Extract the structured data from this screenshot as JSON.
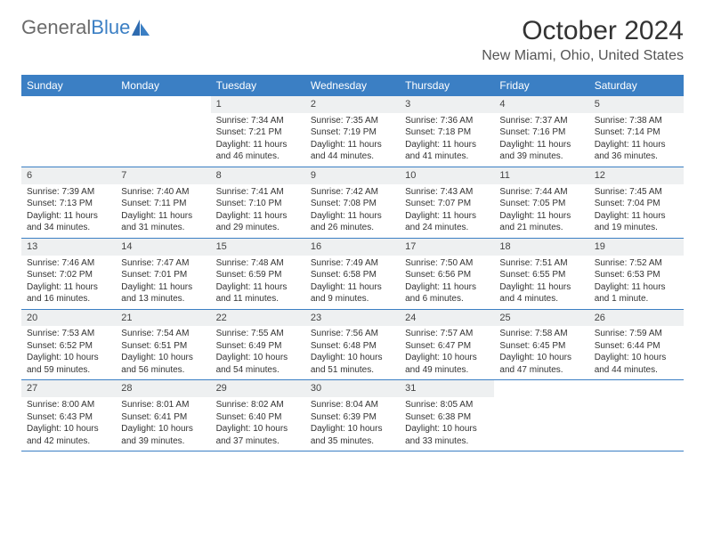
{
  "logo": {
    "text1": "General",
    "text2": "Blue"
  },
  "title": "October 2024",
  "location": "New Miami, Ohio, United States",
  "colors": {
    "accent": "#3b7fc4",
    "dayHeaderBg": "#eef0f1",
    "text": "#333333",
    "logoGray": "#6b6b6b"
  },
  "daysOfWeek": [
    "Sunday",
    "Monday",
    "Tuesday",
    "Wednesday",
    "Thursday",
    "Friday",
    "Saturday"
  ],
  "weeks": [
    [
      {
        "empty": true
      },
      {
        "empty": true
      },
      {
        "num": "1",
        "sunrise": "Sunrise: 7:34 AM",
        "sunset": "Sunset: 7:21 PM",
        "day1": "Daylight: 11 hours",
        "day2": "and 46 minutes."
      },
      {
        "num": "2",
        "sunrise": "Sunrise: 7:35 AM",
        "sunset": "Sunset: 7:19 PM",
        "day1": "Daylight: 11 hours",
        "day2": "and 44 minutes."
      },
      {
        "num": "3",
        "sunrise": "Sunrise: 7:36 AM",
        "sunset": "Sunset: 7:18 PM",
        "day1": "Daylight: 11 hours",
        "day2": "and 41 minutes."
      },
      {
        "num": "4",
        "sunrise": "Sunrise: 7:37 AM",
        "sunset": "Sunset: 7:16 PM",
        "day1": "Daylight: 11 hours",
        "day2": "and 39 minutes."
      },
      {
        "num": "5",
        "sunrise": "Sunrise: 7:38 AM",
        "sunset": "Sunset: 7:14 PM",
        "day1": "Daylight: 11 hours",
        "day2": "and 36 minutes."
      }
    ],
    [
      {
        "num": "6",
        "sunrise": "Sunrise: 7:39 AM",
        "sunset": "Sunset: 7:13 PM",
        "day1": "Daylight: 11 hours",
        "day2": "and 34 minutes."
      },
      {
        "num": "7",
        "sunrise": "Sunrise: 7:40 AM",
        "sunset": "Sunset: 7:11 PM",
        "day1": "Daylight: 11 hours",
        "day2": "and 31 minutes."
      },
      {
        "num": "8",
        "sunrise": "Sunrise: 7:41 AM",
        "sunset": "Sunset: 7:10 PM",
        "day1": "Daylight: 11 hours",
        "day2": "and 29 minutes."
      },
      {
        "num": "9",
        "sunrise": "Sunrise: 7:42 AM",
        "sunset": "Sunset: 7:08 PM",
        "day1": "Daylight: 11 hours",
        "day2": "and 26 minutes."
      },
      {
        "num": "10",
        "sunrise": "Sunrise: 7:43 AM",
        "sunset": "Sunset: 7:07 PM",
        "day1": "Daylight: 11 hours",
        "day2": "and 24 minutes."
      },
      {
        "num": "11",
        "sunrise": "Sunrise: 7:44 AM",
        "sunset": "Sunset: 7:05 PM",
        "day1": "Daylight: 11 hours",
        "day2": "and 21 minutes."
      },
      {
        "num": "12",
        "sunrise": "Sunrise: 7:45 AM",
        "sunset": "Sunset: 7:04 PM",
        "day1": "Daylight: 11 hours",
        "day2": "and 19 minutes."
      }
    ],
    [
      {
        "num": "13",
        "sunrise": "Sunrise: 7:46 AM",
        "sunset": "Sunset: 7:02 PM",
        "day1": "Daylight: 11 hours",
        "day2": "and 16 minutes."
      },
      {
        "num": "14",
        "sunrise": "Sunrise: 7:47 AM",
        "sunset": "Sunset: 7:01 PM",
        "day1": "Daylight: 11 hours",
        "day2": "and 13 minutes."
      },
      {
        "num": "15",
        "sunrise": "Sunrise: 7:48 AM",
        "sunset": "Sunset: 6:59 PM",
        "day1": "Daylight: 11 hours",
        "day2": "and 11 minutes."
      },
      {
        "num": "16",
        "sunrise": "Sunrise: 7:49 AM",
        "sunset": "Sunset: 6:58 PM",
        "day1": "Daylight: 11 hours",
        "day2": "and 9 minutes."
      },
      {
        "num": "17",
        "sunrise": "Sunrise: 7:50 AM",
        "sunset": "Sunset: 6:56 PM",
        "day1": "Daylight: 11 hours",
        "day2": "and 6 minutes."
      },
      {
        "num": "18",
        "sunrise": "Sunrise: 7:51 AM",
        "sunset": "Sunset: 6:55 PM",
        "day1": "Daylight: 11 hours",
        "day2": "and 4 minutes."
      },
      {
        "num": "19",
        "sunrise": "Sunrise: 7:52 AM",
        "sunset": "Sunset: 6:53 PM",
        "day1": "Daylight: 11 hours",
        "day2": "and 1 minute."
      }
    ],
    [
      {
        "num": "20",
        "sunrise": "Sunrise: 7:53 AM",
        "sunset": "Sunset: 6:52 PM",
        "day1": "Daylight: 10 hours",
        "day2": "and 59 minutes."
      },
      {
        "num": "21",
        "sunrise": "Sunrise: 7:54 AM",
        "sunset": "Sunset: 6:51 PM",
        "day1": "Daylight: 10 hours",
        "day2": "and 56 minutes."
      },
      {
        "num": "22",
        "sunrise": "Sunrise: 7:55 AM",
        "sunset": "Sunset: 6:49 PM",
        "day1": "Daylight: 10 hours",
        "day2": "and 54 minutes."
      },
      {
        "num": "23",
        "sunrise": "Sunrise: 7:56 AM",
        "sunset": "Sunset: 6:48 PM",
        "day1": "Daylight: 10 hours",
        "day2": "and 51 minutes."
      },
      {
        "num": "24",
        "sunrise": "Sunrise: 7:57 AM",
        "sunset": "Sunset: 6:47 PM",
        "day1": "Daylight: 10 hours",
        "day2": "and 49 minutes."
      },
      {
        "num": "25",
        "sunrise": "Sunrise: 7:58 AM",
        "sunset": "Sunset: 6:45 PM",
        "day1": "Daylight: 10 hours",
        "day2": "and 47 minutes."
      },
      {
        "num": "26",
        "sunrise": "Sunrise: 7:59 AM",
        "sunset": "Sunset: 6:44 PM",
        "day1": "Daylight: 10 hours",
        "day2": "and 44 minutes."
      }
    ],
    [
      {
        "num": "27",
        "sunrise": "Sunrise: 8:00 AM",
        "sunset": "Sunset: 6:43 PM",
        "day1": "Daylight: 10 hours",
        "day2": "and 42 minutes."
      },
      {
        "num": "28",
        "sunrise": "Sunrise: 8:01 AM",
        "sunset": "Sunset: 6:41 PM",
        "day1": "Daylight: 10 hours",
        "day2": "and 39 minutes."
      },
      {
        "num": "29",
        "sunrise": "Sunrise: 8:02 AM",
        "sunset": "Sunset: 6:40 PM",
        "day1": "Daylight: 10 hours",
        "day2": "and 37 minutes."
      },
      {
        "num": "30",
        "sunrise": "Sunrise: 8:04 AM",
        "sunset": "Sunset: 6:39 PM",
        "day1": "Daylight: 10 hours",
        "day2": "and 35 minutes."
      },
      {
        "num": "31",
        "sunrise": "Sunrise: 8:05 AM",
        "sunset": "Sunset: 6:38 PM",
        "day1": "Daylight: 10 hours",
        "day2": "and 33 minutes."
      },
      {
        "empty": true
      },
      {
        "empty": true
      }
    ]
  ]
}
